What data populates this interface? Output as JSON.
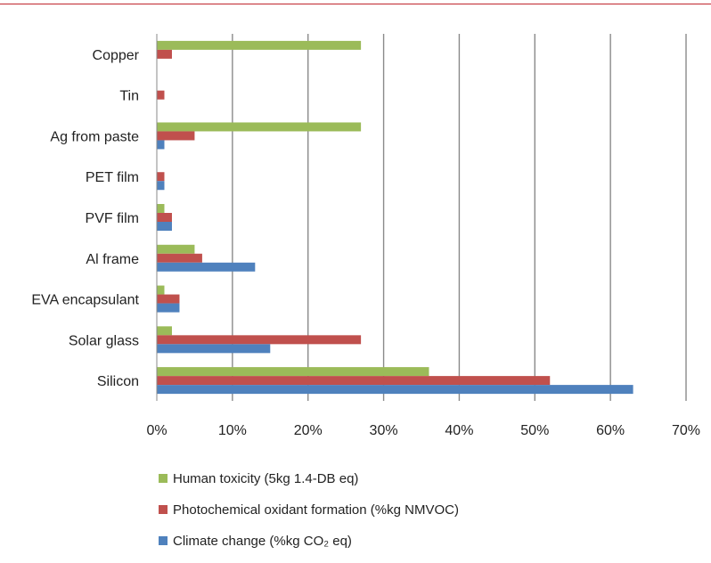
{
  "chart_data": {
    "type": "bar",
    "orientation": "horizontal",
    "categories": [
      "Copper",
      "Tin",
      "Ag from paste",
      "PET film",
      "PVF film",
      "Al frame",
      "EVA encapsulant",
      "Solar glass",
      "Silicon"
    ],
    "series": [
      {
        "name": "Human toxicity (5kg 1.4-DB eq)",
        "color": "#9bbb59",
        "values": [
          27,
          0,
          27,
          0,
          1,
          5,
          1,
          2,
          36
        ]
      },
      {
        "name": "Photochemical oxidant formation (%kg NMVOC)",
        "color": "#c0504d",
        "values": [
          2,
          1,
          5,
          1,
          2,
          6,
          3,
          27,
          52
        ]
      },
      {
        "name": "Climate change (%kg CO₂ eq)",
        "color": "#4f81bd",
        "values": [
          0,
          0,
          1,
          1,
          2,
          13,
          3,
          15,
          63
        ]
      }
    ],
    "xlim": [
      0,
      70
    ],
    "xticks": [
      0,
      10,
      20,
      30,
      40,
      50,
      60,
      70
    ],
    "xtick_labels": [
      "0%",
      "10%",
      "20%",
      "30%",
      "40%",
      "50%",
      "60%",
      "70%"
    ],
    "grid": "vertical",
    "legend_position": "bottom"
  }
}
